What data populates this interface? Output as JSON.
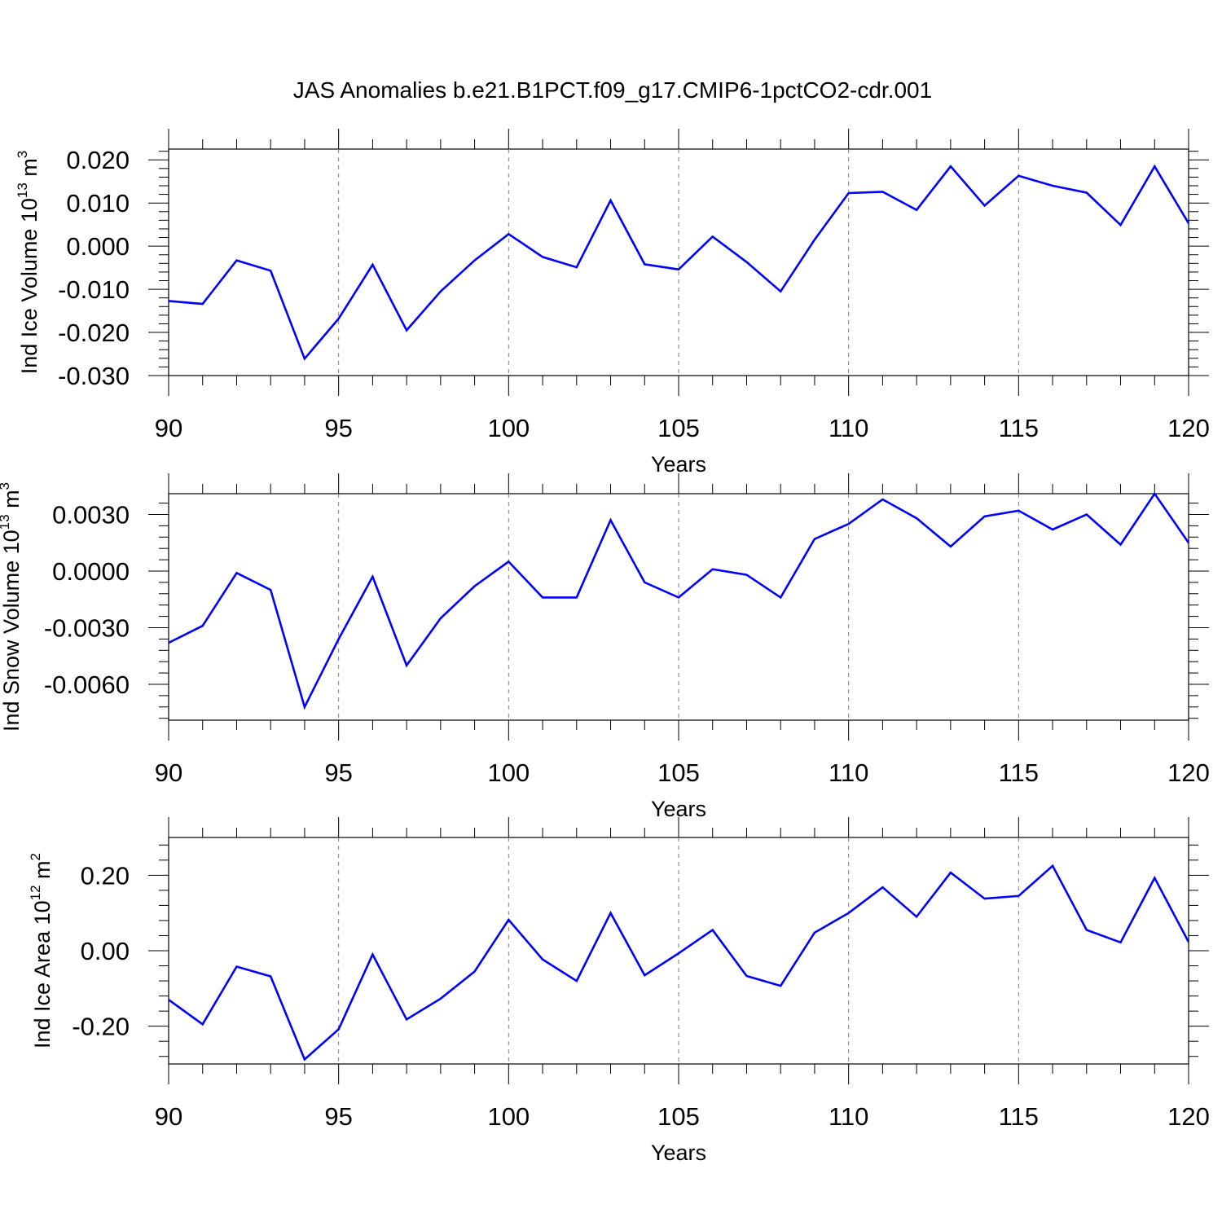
{
  "figure": {
    "title": "JAS Anomalies b.e21.B1PCT.f09_g17.CMIP6-1pctCO2-cdr.001"
  },
  "colors": {
    "series": "#0000ff",
    "axis": "#000000",
    "grid": "#808080"
  },
  "chart_data": [
    {
      "type": "line",
      "ylabel": "Ind Ice Volume 10",
      "ylabel_exp": "13",
      "ylabel_unit": " m",
      "ylabel_unit_exp": "3",
      "xlabel": "Years",
      "xlim": [
        90,
        120
      ],
      "ylim": [
        -0.03,
        0.0225
      ],
      "xticks": [
        "90",
        "95",
        "100",
        "105",
        "110",
        "115",
        "120"
      ],
      "yticks": [
        "-0.030",
        "-0.020",
        "-0.010",
        "0.000",
        "0.010",
        "0.020"
      ],
      "grid_x": true,
      "series": [
        {
          "x": [
            90,
            91,
            92,
            93,
            94,
            95,
            96,
            97,
            98,
            99,
            100,
            101,
            102,
            103,
            104,
            105,
            106,
            107,
            108,
            109,
            110,
            111,
            112,
            113,
            114,
            115,
            116,
            117,
            118,
            119,
            120
          ],
          "values": [
            -0.0127,
            -0.0134,
            -0.0033,
            -0.0057,
            -0.0261,
            -0.0168,
            -0.0043,
            -0.0195,
            -0.0105,
            -0.0033,
            0.0028,
            -0.0025,
            -0.0049,
            0.0106,
            -0.0042,
            -0.0054,
            0.0022,
            -0.0037,
            -0.0105,
            0.0015,
            0.0123,
            0.0126,
            0.0084,
            0.0185,
            0.0094,
            0.0163,
            0.014,
            0.0124,
            0.0049,
            0.0185,
            0.0053
          ]
        }
      ]
    },
    {
      "type": "line",
      "ylabel": "Ind Snow Volume 10",
      "ylabel_exp": "13",
      "ylabel_unit": " m",
      "ylabel_unit_exp": "3",
      "xlabel": "Years",
      "xlim": [
        90,
        120
      ],
      "ylim": [
        -0.0079,
        0.0041
      ],
      "xticks": [
        "90",
        "95",
        "100",
        "105",
        "110",
        "115",
        "120"
      ],
      "yticks": [
        "-0.0060",
        "-0.0030",
        "0.0000",
        "0.0030"
      ],
      "grid_x": true,
      "series": [
        {
          "x": [
            90,
            91,
            92,
            93,
            94,
            95,
            96,
            97,
            98,
            99,
            100,
            101,
            102,
            103,
            104,
            105,
            106,
            107,
            108,
            109,
            110,
            111,
            112,
            113,
            114,
            115,
            116,
            117,
            118,
            119,
            120
          ],
          "values": [
            -0.0038,
            -0.0029,
            -0.0001,
            -0.001,
            -0.0072,
            -0.0036,
            -0.0003,
            -0.005,
            -0.0025,
            -0.0008,
            0.0005,
            -0.0014,
            -0.0014,
            0.0027,
            -0.0006,
            -0.0014,
            0.0001,
            -0.0002,
            -0.0014,
            0.0017,
            0.0025,
            0.0038,
            0.0028,
            0.0013,
            0.0029,
            0.0032,
            0.0022,
            0.003,
            0.0014,
            0.0041,
            0.0015
          ]
        }
      ]
    },
    {
      "type": "line",
      "ylabel": "Ind Ice Area 10",
      "ylabel_exp": "12",
      "ylabel_unit": " m",
      "ylabel_unit_exp": "2",
      "xlabel": "Years",
      "xlim": [
        90,
        120
      ],
      "ylim": [
        -0.3,
        0.3
      ],
      "xticks": [
        "90",
        "95",
        "100",
        "105",
        "110",
        "115",
        "120"
      ],
      "yticks": [
        "-0.20",
        "0.00",
        "0.20"
      ],
      "grid_x": true,
      "series": [
        {
          "x": [
            90,
            91,
            92,
            93,
            94,
            95,
            96,
            97,
            98,
            99,
            100,
            101,
            102,
            103,
            104,
            105,
            106,
            107,
            108,
            109,
            110,
            111,
            112,
            113,
            114,
            115,
            116,
            117,
            118,
            119,
            120
          ],
          "values": [
            -0.13,
            -0.195,
            -0.042,
            -0.068,
            -0.288,
            -0.208,
            -0.01,
            -0.182,
            -0.127,
            -0.055,
            0.082,
            -0.023,
            -0.08,
            0.1,
            -0.065,
            -0.007,
            0.055,
            -0.067,
            -0.093,
            0.048,
            0.1,
            0.168,
            0.09,
            0.207,
            0.138,
            0.145,
            0.225,
            0.055,
            0.022,
            0.193,
            0.023
          ]
        }
      ]
    }
  ]
}
